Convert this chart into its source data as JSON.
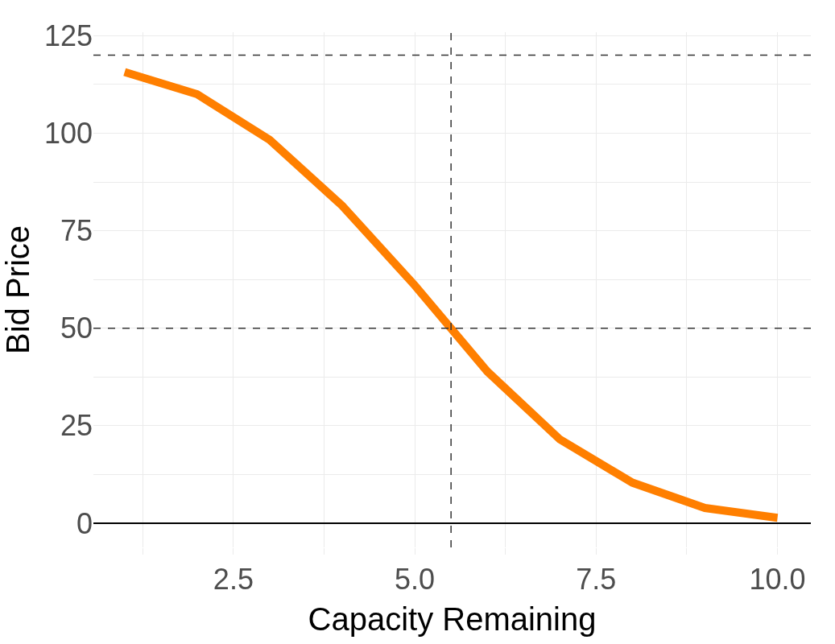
{
  "chart_data": {
    "type": "line",
    "xlabel": "Capacity Remaining",
    "ylabel": "Bid Price",
    "x": [
      1,
      2,
      3,
      4,
      5,
      6,
      7,
      8,
      9,
      10
    ],
    "series": [
      {
        "color": "#ff7f00",
        "values": [
          115.7,
          110,
          98.3,
          81.4,
          61,
          38.9,
          21.5,
          10.4,
          3.9,
          1.4
        ]
      }
    ],
    "xlim": [
      0.57,
      10.46
    ],
    "ylim": [
      -6.2,
      125.9
    ],
    "xticks": [
      {
        "value": 1.25,
        "label": null
      },
      {
        "value": 2.5,
        "label": "2.5"
      },
      {
        "value": 3.75,
        "label": null
      },
      {
        "value": 5,
        "label": "5.0"
      },
      {
        "value": 6.25,
        "label": null
      },
      {
        "value": 7.5,
        "label": "7.5"
      },
      {
        "value": 8.75,
        "label": null
      },
      {
        "value": 10,
        "label": "10.0"
      }
    ],
    "yticks": [
      0,
      {
        "value": 12.5,
        "label": null
      },
      25,
      {
        "value": 37.5,
        "label": null
      },
      50,
      {
        "value": 62.5,
        "label": null
      },
      75,
      {
        "value": 87.5,
        "label": null
      },
      100,
      {
        "value": 112.5,
        "label": null
      },
      125
    ],
    "ref_lines": [
      {
        "axis": "y",
        "value": 120,
        "color": "#333333",
        "line_style": "dashed"
      },
      {
        "axis": "y",
        "value": 50,
        "color": "#333333",
        "line_style": "dashed"
      },
      {
        "axis": "x",
        "value": 5.5,
        "color": "#333333",
        "line_style": "dashed"
      }
    ],
    "grid": true,
    "marker": "none",
    "line_style": "solid"
  }
}
